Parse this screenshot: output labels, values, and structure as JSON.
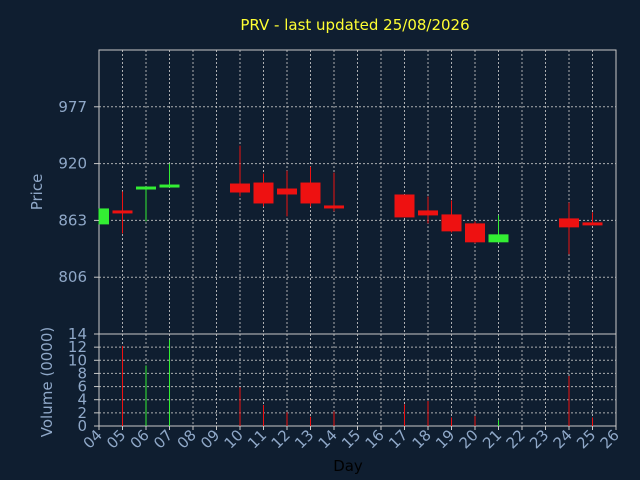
{
  "chart_data": {
    "type": "candlestick",
    "title": "PRV - last updated 25/08/2026",
    "xlabel": "Day",
    "days": [
      "04",
      "05",
      "06",
      "07",
      "08",
      "09",
      "10",
      "11",
      "12",
      "13",
      "14",
      "15",
      "16",
      "17",
      "18",
      "19",
      "20",
      "21",
      "22",
      "23",
      "24",
      "25",
      "26"
    ],
    "price": {
      "ylabel": "Price",
      "ylim": [
        749,
        1034
      ],
      "yticks": [
        806,
        863,
        920,
        977
      ],
      "candles": [
        {
          "day": "04",
          "open": 859,
          "high": 875,
          "low": 859,
          "close": 875
        },
        {
          "day": "05",
          "open": 873,
          "high": 892,
          "low": 850,
          "close": 871
        },
        {
          "day": "06",
          "open": 895,
          "high": 896,
          "low": 862,
          "close": 897
        },
        {
          "day": "07",
          "open": 897,
          "high": 920,
          "low": 897,
          "close": 899
        },
        {
          "day": "10",
          "open": 900,
          "high": 938,
          "low": 887,
          "close": 891
        },
        {
          "day": "11",
          "open": 901,
          "high": 910,
          "low": 877,
          "close": 880
        },
        {
          "day": "12",
          "open": 895,
          "high": 913,
          "low": 867,
          "close": 889
        },
        {
          "day": "13",
          "open": 901,
          "high": 917,
          "low": 877,
          "close": 880
        },
        {
          "day": "14",
          "open": 878,
          "high": 911,
          "low": 872,
          "close": 876
        },
        {
          "day": "17",
          "open": 889,
          "high": 889,
          "low": 866,
          "close": 866
        },
        {
          "day": "18",
          "open": 873,
          "high": 887,
          "low": 860,
          "close": 868
        },
        {
          "day": "19",
          "open": 869,
          "high": 883,
          "low": 851,
          "close": 852
        },
        {
          "day": "20",
          "open": 860,
          "high": 862,
          "low": 840,
          "close": 841
        },
        {
          "day": "21",
          "open": 841,
          "high": 868,
          "low": 841,
          "close": 849
        },
        {
          "day": "24",
          "open": 865,
          "high": 881,
          "low": 829,
          "close": 856
        },
        {
          "day": "25",
          "open": 861,
          "high": 871,
          "low": 859,
          "close": 858
        }
      ]
    },
    "volume": {
      "ylabel": "Volume (0000)",
      "ylim": [
        0,
        14
      ],
      "yticks": [
        0,
        2,
        4,
        6,
        8,
        10,
        12,
        14
      ],
      "bars": [
        {
          "day": "05",
          "value": 12.2,
          "color": "red"
        },
        {
          "day": "06",
          "value": 9.2,
          "color": "green"
        },
        {
          "day": "07",
          "value": 13.1,
          "color": "green"
        },
        {
          "day": "10",
          "value": 5.9,
          "color": "red"
        },
        {
          "day": "11",
          "value": 3.2,
          "color": "red"
        },
        {
          "day": "12",
          "value": 2.1,
          "color": "red"
        },
        {
          "day": "13",
          "value": 1.4,
          "color": "red"
        },
        {
          "day": "14",
          "value": 2.2,
          "color": "red"
        },
        {
          "day": "17",
          "value": 3.3,
          "color": "red"
        },
        {
          "day": "18",
          "value": 3.8,
          "color": "red"
        },
        {
          "day": "19",
          "value": 1.3,
          "color": "red"
        },
        {
          "day": "20",
          "value": 1.5,
          "color": "red"
        },
        {
          "day": "21",
          "value": 0.9,
          "color": "green"
        },
        {
          "day": "24",
          "value": 7.6,
          "color": "red"
        },
        {
          "day": "25",
          "value": 1.3,
          "color": "red"
        }
      ]
    },
    "grid": true,
    "colors": {
      "up": "#33ee33",
      "down": "#ee1111",
      "background": "#0f1e30",
      "title": "#ffff33",
      "axis_text": "#8fa8c8"
    }
  }
}
